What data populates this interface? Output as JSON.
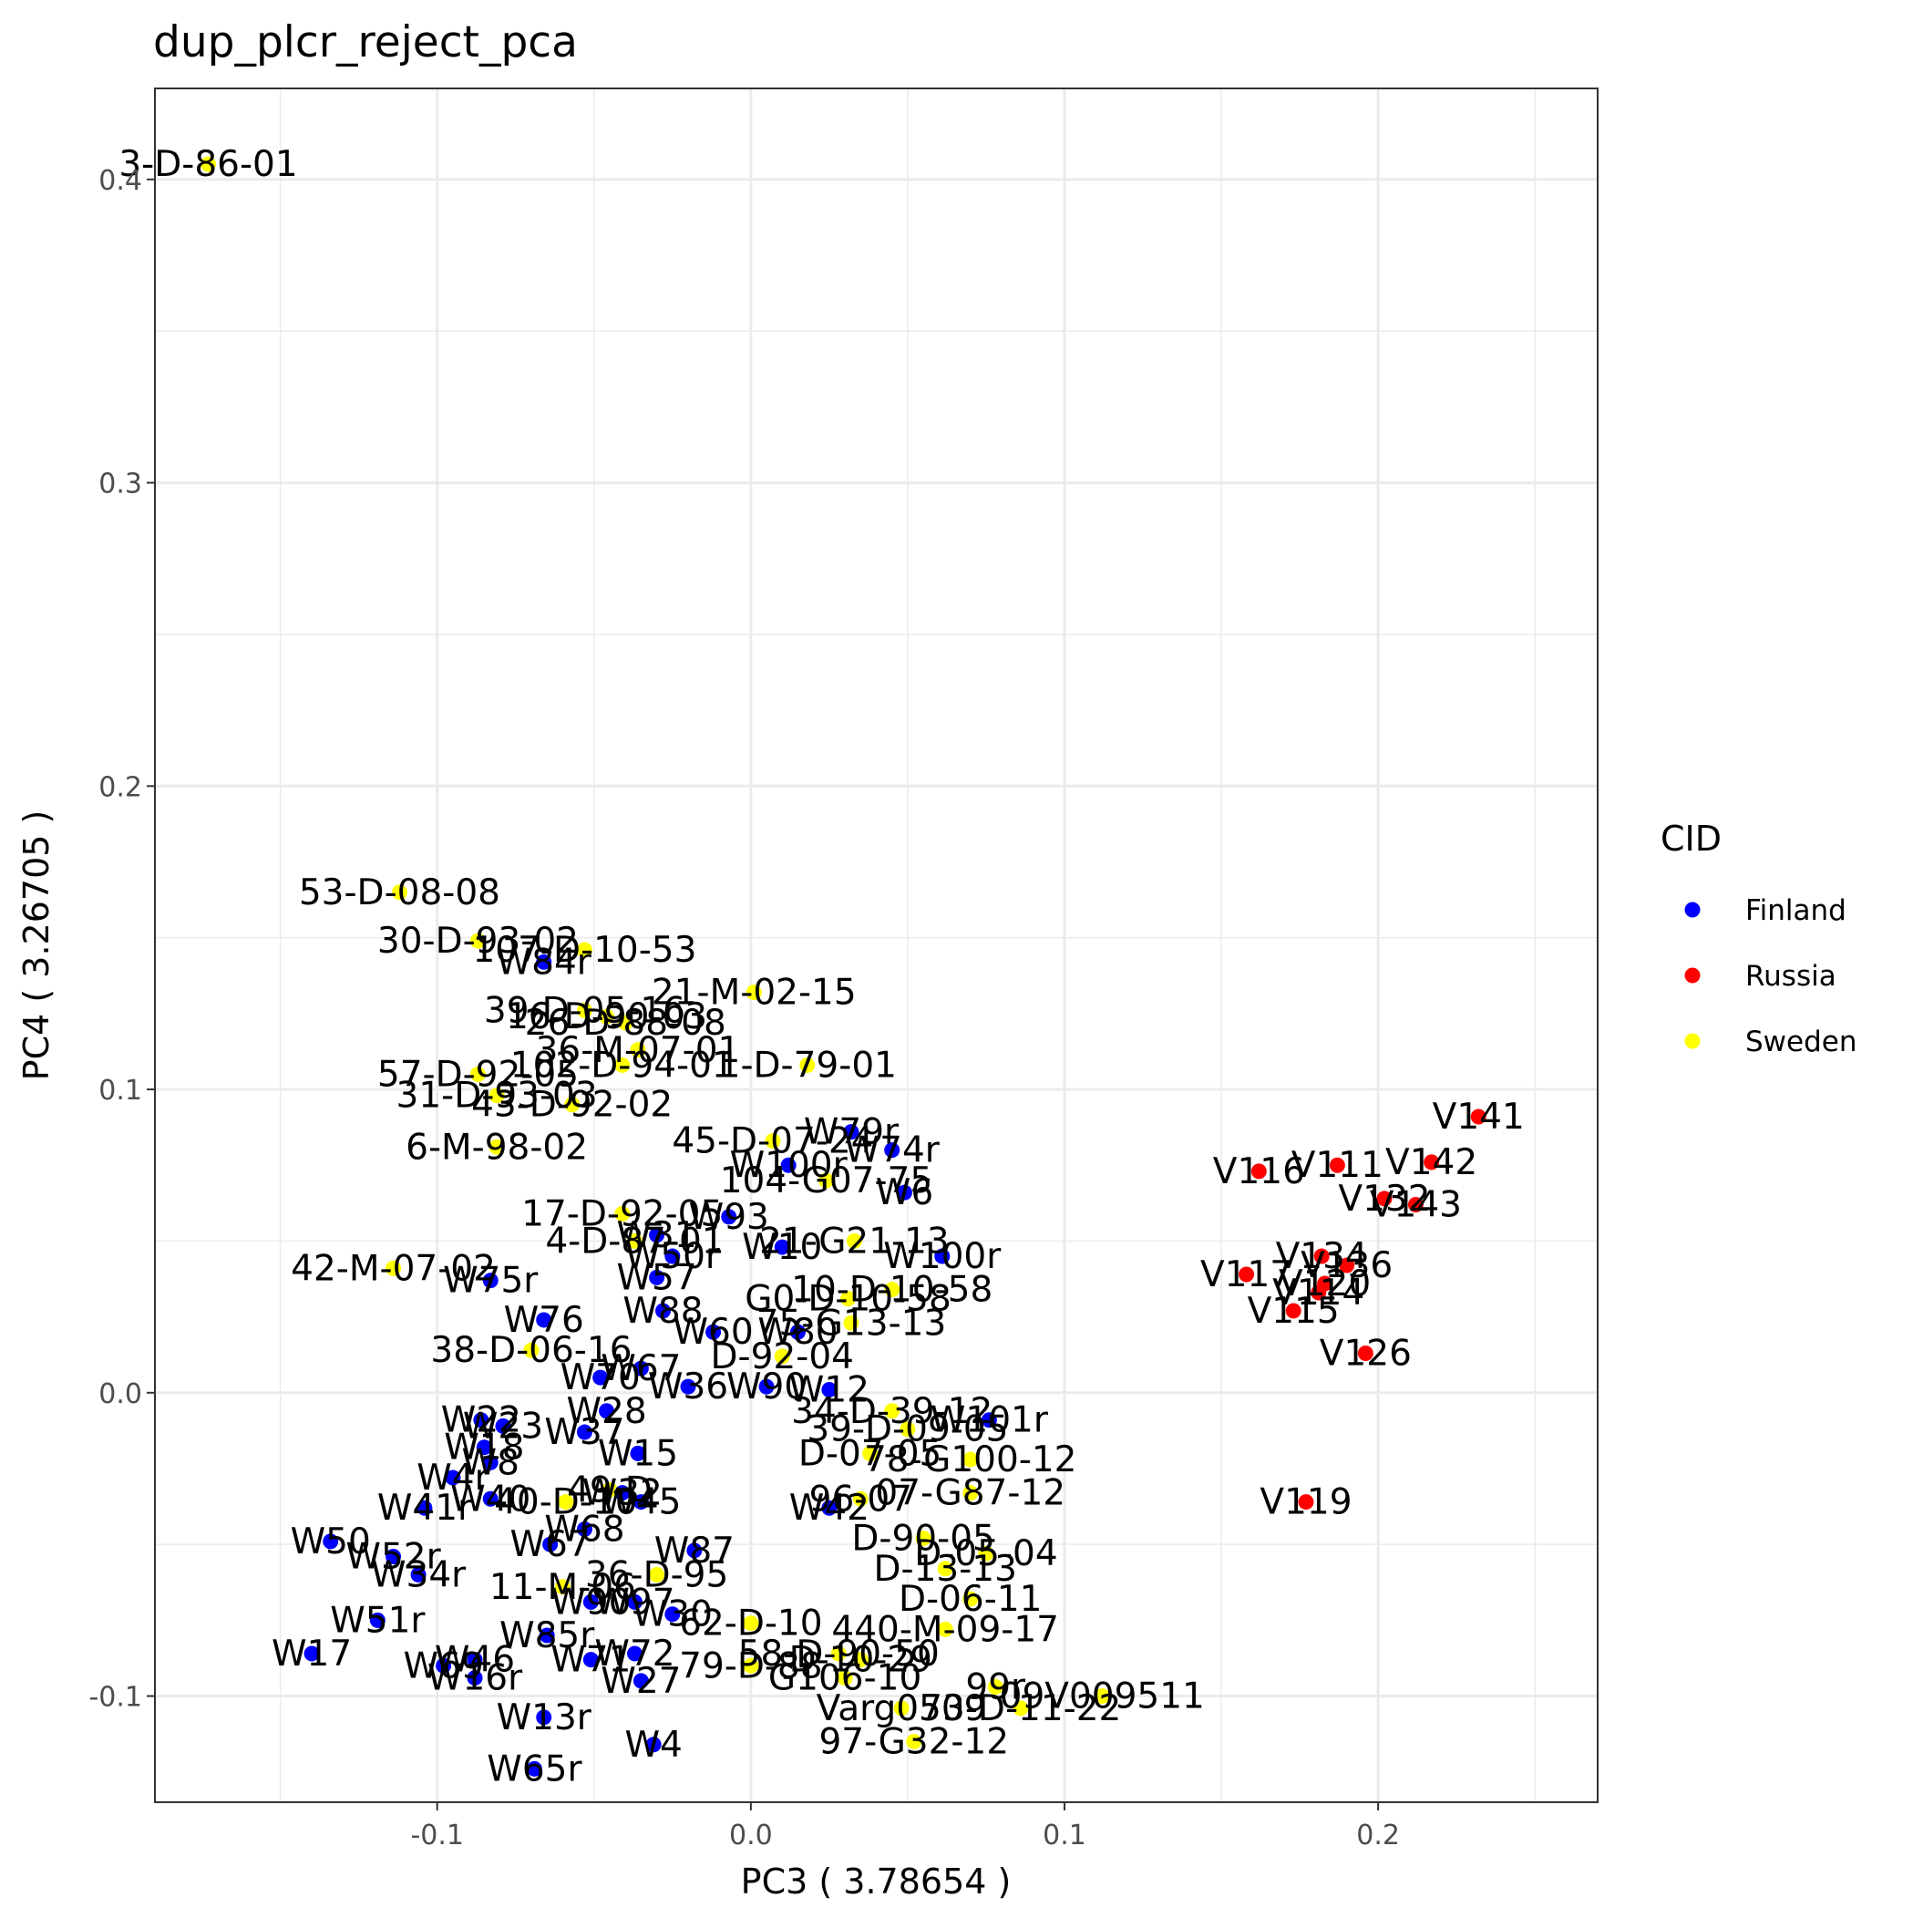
{
  "chart_data": {
    "type": "scatter",
    "title": "dup_plcr_reject_pca",
    "xlabel": "PC3 ( 3.78654 )",
    "ylabel": "PC4 ( 3.26705 )",
    "xlim": [
      -0.19,
      0.27
    ],
    "ylim": [
      -0.135,
      0.43
    ],
    "x_ticks": [
      -0.1,
      0.0,
      0.1,
      0.2
    ],
    "x_tick_labels": [
      "-0.1",
      "0.0",
      "0.1",
      "0.2"
    ],
    "y_ticks": [
      -0.1,
      0.0,
      0.1,
      0.2,
      0.3,
      0.4
    ],
    "y_tick_labels": [
      "-0.1",
      "0.0",
      "0.1",
      "0.2",
      "0.3",
      "0.4"
    ],
    "grid": true,
    "legend": {
      "title": "CID",
      "position": "right",
      "entries": [
        {
          "name": "Finland",
          "color": "#0000ff"
        },
        {
          "name": "Russia",
          "color": "#ff0000"
        },
        {
          "name": "Sweden",
          "color": "#ffff00"
        }
      ]
    },
    "series": [
      {
        "name": "Finland",
        "color": "#0000ff",
        "points": [
          {
            "x": -0.066,
            "y": 0.142,
            "label": "W84r"
          },
          {
            "x": 0.032,
            "y": 0.086,
            "label": "W79r"
          },
          {
            "x": 0.045,
            "y": 0.08,
            "label": "W74r"
          },
          {
            "x": 0.012,
            "y": 0.075,
            "label": "W100r"
          },
          {
            "x": 0.049,
            "y": 0.066,
            "label": "W6"
          },
          {
            "x": -0.007,
            "y": 0.058,
            "label": "W93"
          },
          {
            "x": -0.03,
            "y": 0.052,
            "label": "W31"
          },
          {
            "x": -0.025,
            "y": 0.045,
            "label": "W50r"
          },
          {
            "x": 0.01,
            "y": 0.048,
            "label": "W10"
          },
          {
            "x": 0.061,
            "y": 0.045,
            "label": "W100r"
          },
          {
            "x": -0.083,
            "y": 0.037,
            "label": "W75r"
          },
          {
            "x": -0.03,
            "y": 0.038,
            "label": "W57"
          },
          {
            "x": -0.066,
            "y": 0.024,
            "label": "W76"
          },
          {
            "x": -0.028,
            "y": 0.027,
            "label": "W88"
          },
          {
            "x": -0.012,
            "y": 0.02,
            "label": "W60"
          },
          {
            "x": 0.015,
            "y": 0.02,
            "label": "W80"
          },
          {
            "x": -0.048,
            "y": 0.005,
            "label": "W70"
          },
          {
            "x": -0.035,
            "y": 0.008,
            "label": "W67"
          },
          {
            "x": -0.02,
            "y": 0.002,
            "label": "W36"
          },
          {
            "x": 0.005,
            "y": 0.002,
            "label": "W90"
          },
          {
            "x": 0.025,
            "y": 0.001,
            "label": "W12"
          },
          {
            "x": 0.076,
            "y": -0.009,
            "label": "W101r"
          },
          {
            "x": -0.086,
            "y": -0.009,
            "label": "W22"
          },
          {
            "x": -0.079,
            "y": -0.011,
            "label": "W23"
          },
          {
            "x": -0.053,
            "y": -0.013,
            "label": "W37"
          },
          {
            "x": -0.046,
            "y": -0.006,
            "label": "W28"
          },
          {
            "x": -0.085,
            "y": -0.018,
            "label": "W18"
          },
          {
            "x": -0.036,
            "y": -0.02,
            "label": "W15"
          },
          {
            "x": -0.083,
            "y": -0.023,
            "label": "W8"
          },
          {
            "x": -0.095,
            "y": -0.028,
            "label": "W4r"
          },
          {
            "x": -0.083,
            "y": -0.035,
            "label": "W40"
          },
          {
            "x": -0.041,
            "y": -0.033,
            "label": "W32"
          },
          {
            "x": -0.035,
            "y": -0.036,
            "label": "W45"
          },
          {
            "x": -0.104,
            "y": -0.038,
            "label": "W41r"
          },
          {
            "x": 0.025,
            "y": -0.038,
            "label": "W42"
          },
          {
            "x": -0.053,
            "y": -0.045,
            "label": "W68"
          },
          {
            "x": -0.064,
            "y": -0.05,
            "label": "W67"
          },
          {
            "x": -0.134,
            "y": -0.049,
            "label": "W50"
          },
          {
            "x": -0.114,
            "y": -0.054,
            "label": "W52r"
          },
          {
            "x": -0.018,
            "y": -0.052,
            "label": "W87"
          },
          {
            "x": -0.106,
            "y": -0.06,
            "label": "W34r"
          },
          {
            "x": -0.051,
            "y": -0.069,
            "label": "W90"
          },
          {
            "x": -0.037,
            "y": -0.069,
            "label": "W97"
          },
          {
            "x": -0.025,
            "y": -0.073,
            "label": "W30"
          },
          {
            "x": -0.119,
            "y": -0.075,
            "label": "W51r"
          },
          {
            "x": -0.065,
            "y": -0.08,
            "label": "W85r"
          },
          {
            "x": -0.14,
            "y": -0.086,
            "label": "W17"
          },
          {
            "x": -0.098,
            "y": -0.09,
            "label": "W69"
          },
          {
            "x": -0.088,
            "y": -0.088,
            "label": "W46"
          },
          {
            "x": -0.051,
            "y": -0.088,
            "label": "W71"
          },
          {
            "x": -0.037,
            "y": -0.086,
            "label": "W72"
          },
          {
            "x": -0.088,
            "y": -0.094,
            "label": "W16r"
          },
          {
            "x": -0.035,
            "y": -0.095,
            "label": "W27"
          },
          {
            "x": -0.066,
            "y": -0.107,
            "label": "W13r"
          },
          {
            "x": -0.031,
            "y": -0.116,
            "label": "W4"
          },
          {
            "x": -0.069,
            "y": -0.124,
            "label": "W65r"
          }
        ]
      },
      {
        "name": "Russia",
        "color": "#ff0000",
        "points": [
          {
            "x": 0.232,
            "y": 0.091,
            "label": "V141"
          },
          {
            "x": 0.217,
            "y": 0.076,
            "label": "V142"
          },
          {
            "x": 0.187,
            "y": 0.075,
            "label": "V111"
          },
          {
            "x": 0.162,
            "y": 0.073,
            "label": "V116"
          },
          {
            "x": 0.202,
            "y": 0.064,
            "label": "V132"
          },
          {
            "x": 0.212,
            "y": 0.062,
            "label": "V143"
          },
          {
            "x": 0.182,
            "y": 0.045,
            "label": "V134"
          },
          {
            "x": 0.19,
            "y": 0.042,
            "label": "V136"
          },
          {
            "x": 0.158,
            "y": 0.039,
            "label": "V117"
          },
          {
            "x": 0.183,
            "y": 0.036,
            "label": "V120"
          },
          {
            "x": 0.181,
            "y": 0.033,
            "label": "V114"
          },
          {
            "x": 0.173,
            "y": 0.027,
            "label": "V115"
          },
          {
            "x": 0.196,
            "y": 0.013,
            "label": "V126"
          },
          {
            "x": 0.177,
            "y": -0.036,
            "label": "V119"
          }
        ]
      },
      {
        "name": "Sweden",
        "color": "#ffff00",
        "points": [
          {
            "x": -0.173,
            "y": 0.405,
            "label": "3-D-86-01"
          },
          {
            "x": -0.112,
            "y": 0.165,
            "label": "53-D-08-08"
          },
          {
            "x": -0.087,
            "y": 0.149,
            "label": "30-D-93-02"
          },
          {
            "x": -0.053,
            "y": 0.146,
            "label": "107-D-10-53"
          },
          {
            "x": 0.001,
            "y": 0.132,
            "label": "21-M-02-15"
          },
          {
            "x": -0.053,
            "y": 0.126,
            "label": "39-D-05-16"
          },
          {
            "x": -0.046,
            "y": 0.124,
            "label": "16-D-90-03"
          },
          {
            "x": -0.04,
            "y": 0.122,
            "label": "26-D-88-08"
          },
          {
            "x": -0.036,
            "y": 0.113,
            "label": "36-M-07-01"
          },
          {
            "x": -0.041,
            "y": 0.108,
            "label": "102-D-94-01"
          },
          {
            "x": 0.018,
            "y": 0.108,
            "label": "1-D-79-01"
          },
          {
            "x": -0.087,
            "y": 0.105,
            "label": "57-D-92-05"
          },
          {
            "x": -0.081,
            "y": 0.098,
            "label": "31-D-93-03"
          },
          {
            "x": -0.057,
            "y": 0.095,
            "label": "43-D-92-02"
          },
          {
            "x": -0.081,
            "y": 0.081,
            "label": "6-M-98-02"
          },
          {
            "x": 0.007,
            "y": 0.083,
            "label": "45-D-07-24"
          },
          {
            "x": 0.024,
            "y": 0.07,
            "label": "104-G07-75"
          },
          {
            "x": -0.041,
            "y": 0.059,
            "label": "17-D-92-05"
          },
          {
            "x": -0.037,
            "y": 0.05,
            "label": "4-D-87-01"
          },
          {
            "x": 0.033,
            "y": 0.05,
            "label": "21-G21-13"
          },
          {
            "x": 0.045,
            "y": 0.034,
            "label": "10-D-10-58"
          },
          {
            "x": 0.031,
            "y": 0.031,
            "label": "G0-D-10-58"
          },
          {
            "x": -0.114,
            "y": 0.041,
            "label": "42-M-07-02"
          },
          {
            "x": 0.032,
            "y": 0.023,
            "label": "75-G13-13"
          },
          {
            "x": -0.07,
            "y": 0.014,
            "label": "38-D-06-16"
          },
          {
            "x": 0.01,
            "y": 0.012,
            "label": "D-92-04"
          },
          {
            "x": 0.045,
            "y": -0.006,
            "label": "34-D-39-12"
          },
          {
            "x": 0.05,
            "y": -0.012,
            "label": "39-D-09-05"
          },
          {
            "x": 0.07,
            "y": -0.022,
            "label": "78-G100-12"
          },
          {
            "x": 0.038,
            "y": -0.02,
            "label": "D-07-05"
          },
          {
            "x": 0.07,
            "y": -0.033,
            "label": "07-G87-12"
          },
          {
            "x": 0.035,
            "y": -0.035,
            "label": "96-07"
          },
          {
            "x": -0.045,
            "y": -0.032,
            "label": "49-D"
          },
          {
            "x": -0.059,
            "y": -0.036,
            "label": "40-D-10"
          },
          {
            "x": 0.055,
            "y": -0.048,
            "label": "D-90-05"
          },
          {
            "x": 0.075,
            "y": -0.053,
            "label": "D-05-04"
          },
          {
            "x": 0.062,
            "y": -0.058,
            "label": "D-13-13"
          },
          {
            "x": -0.06,
            "y": -0.064,
            "label": "11-M-06"
          },
          {
            "x": -0.03,
            "y": -0.06,
            "label": "36-D-95"
          },
          {
            "x": 0.07,
            "y": -0.068,
            "label": "D-06-11"
          },
          {
            "x": 0.062,
            "y": -0.078,
            "label": "440-M-09-17"
          },
          {
            "x": 0.0,
            "y": -0.076,
            "label": "62-D-10"
          },
          {
            "x": 0.028,
            "y": -0.086,
            "label": "58-D-90-50"
          },
          {
            "x": 0.035,
            "y": -0.088,
            "label": "D-10-29"
          },
          {
            "x": 0.0,
            "y": -0.09,
            "label": "79-D-88"
          },
          {
            "x": 0.03,
            "y": -0.094,
            "label": "G106-10"
          },
          {
            "x": 0.078,
            "y": -0.097,
            "label": "99r"
          },
          {
            "x": 0.112,
            "y": -0.1,
            "label": "09V009511"
          },
          {
            "x": 0.048,
            "y": -0.104,
            "label": "Varg0509"
          },
          {
            "x": 0.086,
            "y": -0.104,
            "label": "73-D-11-22"
          },
          {
            "x": 0.052,
            "y": -0.115,
            "label": "97-G32-12"
          }
        ]
      }
    ]
  }
}
